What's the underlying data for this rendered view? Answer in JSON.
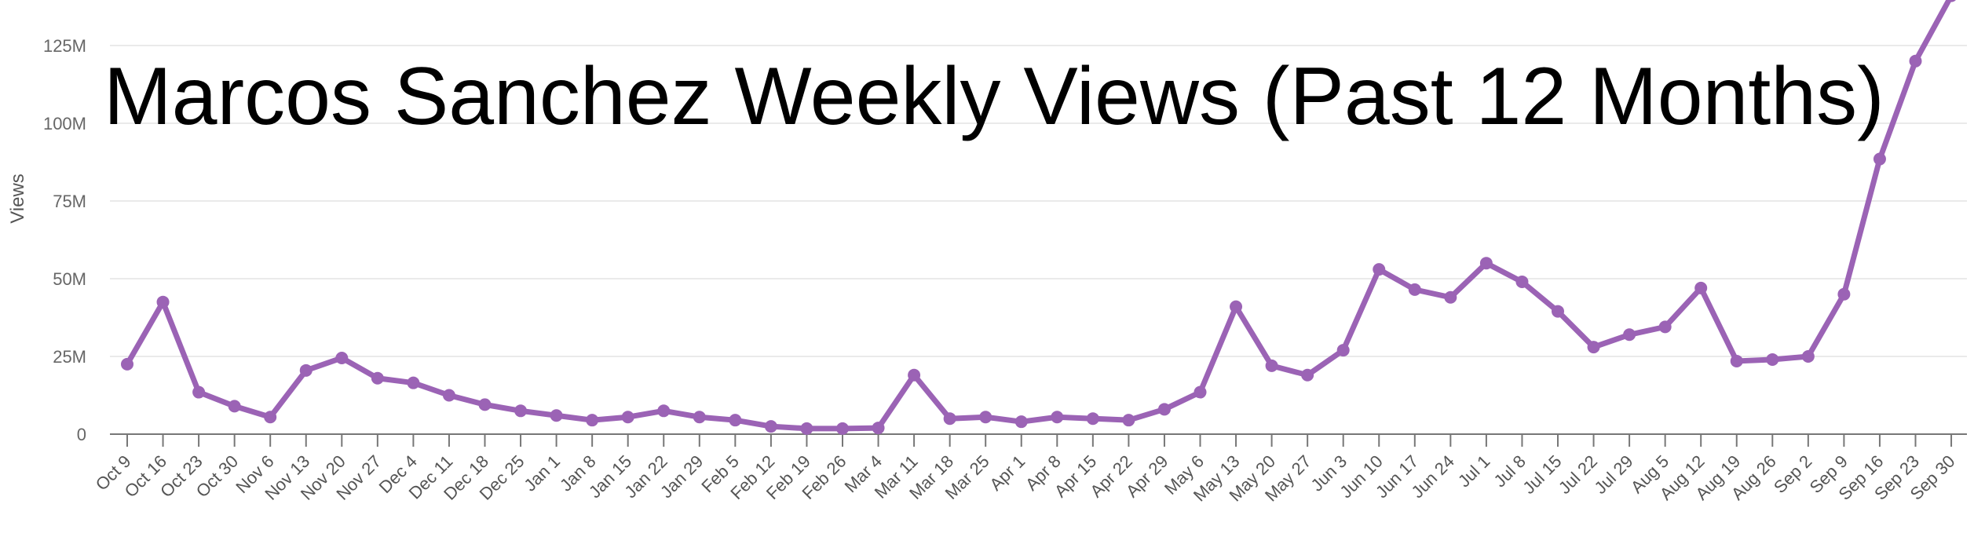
{
  "chart_data": {
    "type": "line",
    "title": "Marcos Sanchez Weekly Views (Past 12 Months)",
    "xlabel": "",
    "ylabel": "Views",
    "ylim": [
      0,
      140000000
    ],
    "yticks": [
      {
        "value": 0,
        "label": "0"
      },
      {
        "value": 25000000,
        "label": "25M"
      },
      {
        "value": 50000000,
        "label": "50M"
      },
      {
        "value": 75000000,
        "label": "75M"
      },
      {
        "value": 100000000,
        "label": "100M"
      },
      {
        "value": 125000000,
        "label": "125M"
      }
    ],
    "grid": true,
    "legend": "none",
    "color": "#9b63b5",
    "categories": [
      "Oct 9",
      "Oct 16",
      "Oct 23",
      "Oct 30",
      "Nov 6",
      "Nov 13",
      "Nov 20",
      "Nov 27",
      "Dec 4",
      "Dec 11",
      "Dec 18",
      "Dec 25",
      "Jan 1",
      "Jan 8",
      "Jan 15",
      "Jan 22",
      "Jan 29",
      "Feb 5",
      "Feb 12",
      "Feb 19",
      "Feb 26",
      "Mar 4",
      "Mar 11",
      "Mar 18",
      "Mar 25",
      "Apr 1",
      "Apr 8",
      "Apr 15",
      "Apr 22",
      "Apr 29",
      "May 6",
      "May 13",
      "May 20",
      "May 27",
      "Jun 3",
      "Jun 10",
      "Jun 17",
      "Jun 24",
      "Jul 1",
      "Jul 8",
      "Jul 15",
      "Jul 22",
      "Jul 29",
      "Aug 5",
      "Aug 12",
      "Aug 19",
      "Aug 26",
      "Sep 2",
      "Sep 9",
      "Sep 16",
      "Sep 23",
      "Sep 30"
    ],
    "values": [
      22500000,
      42500000,
      13500000,
      9000000,
      5500000,
      20500000,
      24500000,
      18000000,
      16500000,
      12500000,
      9500000,
      7500000,
      6000000,
      4500000,
      5500000,
      7500000,
      5500000,
      4500000,
      2500000,
      1800000,
      1800000,
      2000000,
      19000000,
      5000000,
      5500000,
      4000000,
      5500000,
      5000000,
      4500000,
      8000000,
      13500000,
      41000000,
      22000000,
      19000000,
      27000000,
      53000000,
      46500000,
      44000000,
      55000000,
      49000000,
      39500000,
      28000000,
      32000000,
      34500000,
      47000000,
      23500000,
      24000000,
      25000000,
      45000000,
      88500000,
      120000000,
      141000000
    ]
  }
}
